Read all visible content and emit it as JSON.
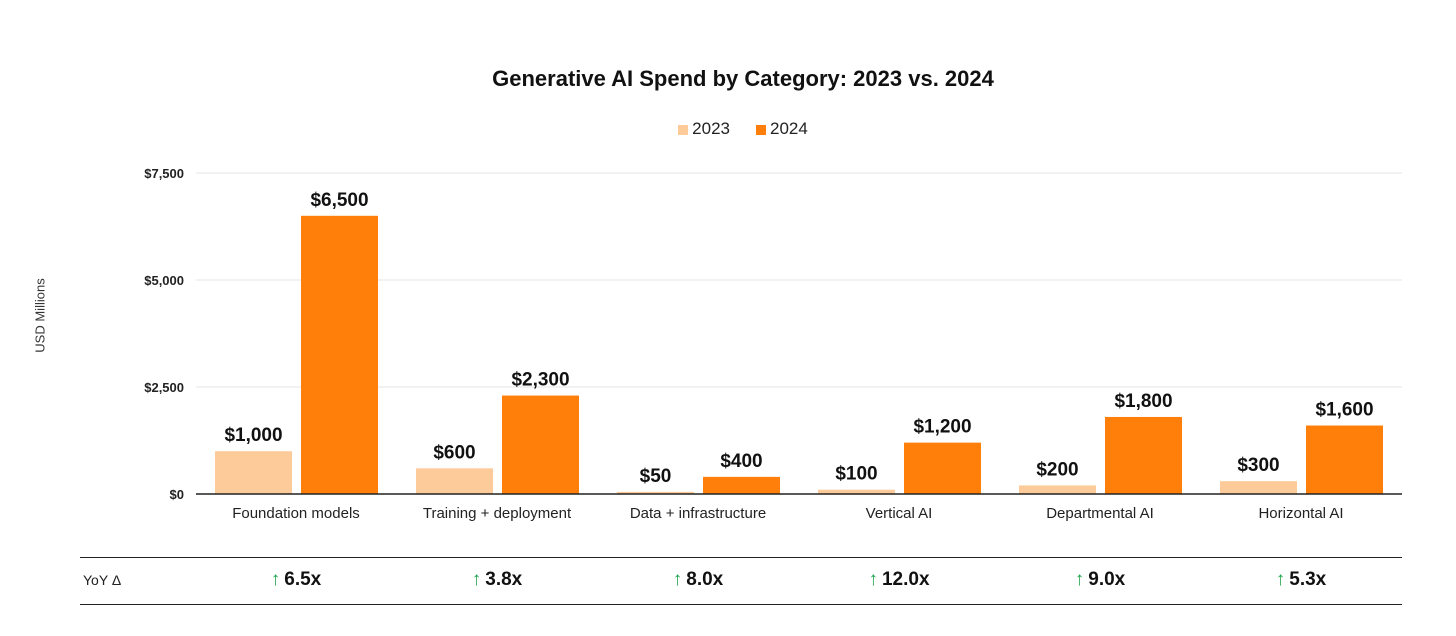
{
  "chart_data": {
    "type": "bar",
    "title": "Generative AI Spend by Category: 2023 vs. 2024",
    "xlabel": "",
    "ylabel": "USD Millions",
    "ylim": [
      0,
      7500
    ],
    "yticks": [
      0,
      2500,
      5000,
      7500
    ],
    "ytick_labels": [
      "$0",
      "$2,500",
      "$5,000",
      "$7,500"
    ],
    "grid": true,
    "legend_position": "top-center",
    "categories": [
      "Foundation models",
      "Training + deployment",
      "Data + infrastructure",
      "Vertical AI",
      "Departmental AI",
      "Horizontal AI"
    ],
    "series": [
      {
        "name": "2023",
        "color": "#FDCB99",
        "values": [
          1000,
          600,
          50,
          100,
          200,
          300
        ],
        "labels": [
          "$1,000",
          "$600",
          "$50",
          "$100",
          "$200",
          "$300"
        ]
      },
      {
        "name": "2024",
        "color": "#FF7F0A",
        "values": [
          6500,
          2300,
          400,
          1200,
          1800,
          1600
        ],
        "labels": [
          "$6,500",
          "$2,300",
          "$400",
          "$1,200",
          "$1,800",
          "$1,600"
        ]
      }
    ],
    "yoy": {
      "label": "YoY Δ",
      "arrow_color": "#1AA34A",
      "values": [
        "6.5x",
        "3.8x",
        "8.0x",
        "12.0x",
        "9.0x",
        "5.3x"
      ]
    }
  }
}
